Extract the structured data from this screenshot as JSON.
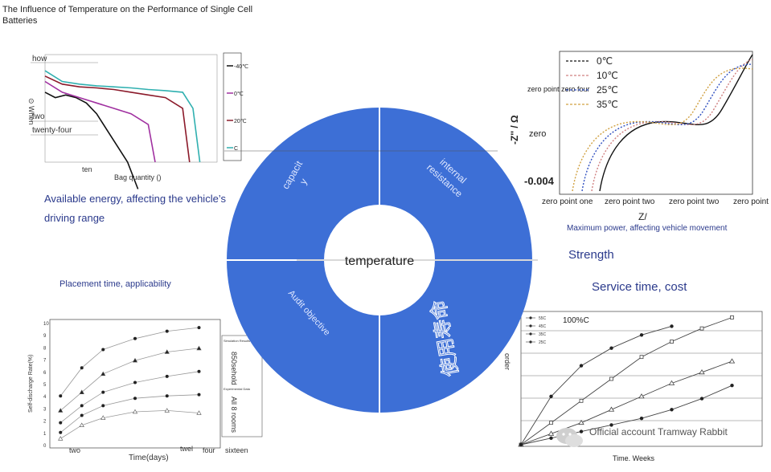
{
  "title": "The Influence of Temperature on the Performance of Single Cell Batteries",
  "center": {
    "label": "temperature",
    "sectors": [
      "capacit\ny",
      "internal\nresistance",
      "Audit objective",
      "使用寿命"
    ]
  },
  "captions": {
    "energy": "Available energy, affecting the vehicle’s driving range",
    "power": "Maximum power, affecting vehicle movement",
    "strength": "Strength",
    "placement": "Placement time, applicability",
    "service": "Service time, cost"
  },
  "watermark": "Official account Tramway Rabbit",
  "colors": {
    "accent": "#3d6fd6"
  },
  "charts": [
    {
      "type": "line",
      "xlabel": "Bag quantity ()",
      "ylabel": "⊙ When",
      "yticks": [
        "how",
        "two",
        "twenty-four"
      ],
      "xticks": [
        "ten"
      ],
      "legend": [
        "-40℃",
        "0℃",
        "20℃",
        "C"
      ],
      "series": [
        {
          "name": "-40℃",
          "color": "#111111",
          "x": [
            0,
            3,
            6,
            9,
            12,
            15,
            18,
            21,
            24,
            27
          ],
          "y": [
            3.3,
            3.2,
            3.25,
            3.2,
            3.1,
            2.9,
            2.6,
            2.3,
            2.0,
            1.5
          ]
        },
        {
          "name": "0℃",
          "color": "#a030a0",
          "x": [
            0,
            5,
            10,
            15,
            20,
            25,
            30,
            32
          ],
          "y": [
            3.5,
            3.3,
            3.2,
            3.1,
            3.0,
            2.9,
            2.7,
            2.0
          ]
        },
        {
          "name": "20℃",
          "color": "#8b1a2a",
          "x": [
            0,
            5,
            10,
            15,
            20,
            25,
            30,
            35,
            40,
            42
          ],
          "y": [
            3.6,
            3.45,
            3.4,
            3.38,
            3.35,
            3.3,
            3.25,
            3.2,
            3.0,
            2.0
          ]
        },
        {
          "name": "C",
          "color": "#30b0b0",
          "x": [
            0,
            5,
            10,
            15,
            20,
            25,
            30,
            35,
            40,
            43,
            45
          ],
          "y": [
            3.7,
            3.5,
            3.45,
            3.42,
            3.4,
            3.38,
            3.35,
            3.33,
            3.3,
            3.0,
            2.0
          ]
        }
      ],
      "xlim": [
        0,
        50
      ],
      "ylim": [
        2,
        4
      ]
    },
    {
      "type": "scatter",
      "xlabel": "Z/",
      "ylabel": "-Z'' / Ω",
      "yticks": [
        "zero",
        "-0.004"
      ],
      "xticks": [
        "zero point one",
        "zero point two",
        "zero point two",
        "zero point"
      ],
      "legend": [
        "0℃",
        "10℃",
        "25℃",
        "35℃"
      ],
      "annotation": "zero point zero four"
    },
    {
      "type": "line",
      "xlabel": "Time(days)",
      "ylabel": "Self-discharge Rate(%)",
      "yticks": [
        "10",
        "9",
        "8",
        "7",
        "6",
        "5",
        "4",
        "3",
        "2",
        "1",
        "0"
      ],
      "xticks": [
        "two",
        "twel",
        "four",
        "sixteen"
      ],
      "legend": [
        "Simulation Results",
        "850sehold",
        "Experimental Data",
        "All 8 rooms"
      ],
      "series": [
        {
          "marker": "circle",
          "x": [
            1,
            3,
            5,
            8,
            11,
            14
          ],
          "y": [
            4.0,
            6.3,
            7.8,
            8.7,
            9.3,
            9.6
          ]
        },
        {
          "marker": "triangle",
          "x": [
            1,
            3,
            5,
            8,
            11,
            14
          ],
          "y": [
            2.8,
            4.3,
            5.8,
            6.9,
            7.6,
            7.9
          ]
        },
        {
          "marker": "circle",
          "x": [
            1,
            3,
            5,
            8,
            11,
            14
          ],
          "y": [
            1.8,
            3.2,
            4.3,
            5.1,
            5.6,
            6.0
          ]
        },
        {
          "marker": "circle",
          "x": [
            1,
            3,
            5,
            8,
            11,
            14
          ],
          "y": [
            1.0,
            2.4,
            3.2,
            3.8,
            4.0,
            4.1
          ]
        },
        {
          "marker": "triangle-open",
          "x": [
            1,
            3,
            5,
            8,
            11,
            14
          ],
          "y": [
            0.5,
            1.6,
            2.2,
            2.7,
            2.8,
            2.6
          ]
        }
      ],
      "xlim": [
        0,
        16
      ],
      "ylim": [
        0,
        10
      ]
    },
    {
      "type": "line",
      "xlabel": "Time. Weeks",
      "ylabel": "order",
      "annotation": "100%C",
      "legend": [
        "55C",
        "45C",
        "35C",
        "25C"
      ],
      "series": [
        {
          "marker": "circle",
          "x": [
            0,
            2,
            4,
            6,
            8,
            10
          ],
          "y": [
            0,
            22,
            36,
            44,
            50,
            54
          ]
        },
        {
          "marker": "square",
          "x": [
            0,
            2,
            4,
            6,
            8,
            10,
            12,
            14
          ],
          "y": [
            0,
            10,
            20,
            30,
            40,
            47,
            53,
            58
          ]
        },
        {
          "marker": "triangle",
          "x": [
            0,
            2,
            4,
            6,
            8,
            10,
            12,
            14
          ],
          "y": [
            0,
            5,
            10,
            16,
            22,
            28,
            33,
            38
          ]
        },
        {
          "marker": "circle",
          "x": [
            0,
            2,
            4,
            6,
            8,
            10,
            12,
            14
          ],
          "y": [
            0,
            3,
            6,
            9,
            12,
            16,
            21,
            27
          ]
        }
      ],
      "xlim": [
        0,
        16
      ],
      "ylim": [
        0,
        60
      ]
    }
  ]
}
